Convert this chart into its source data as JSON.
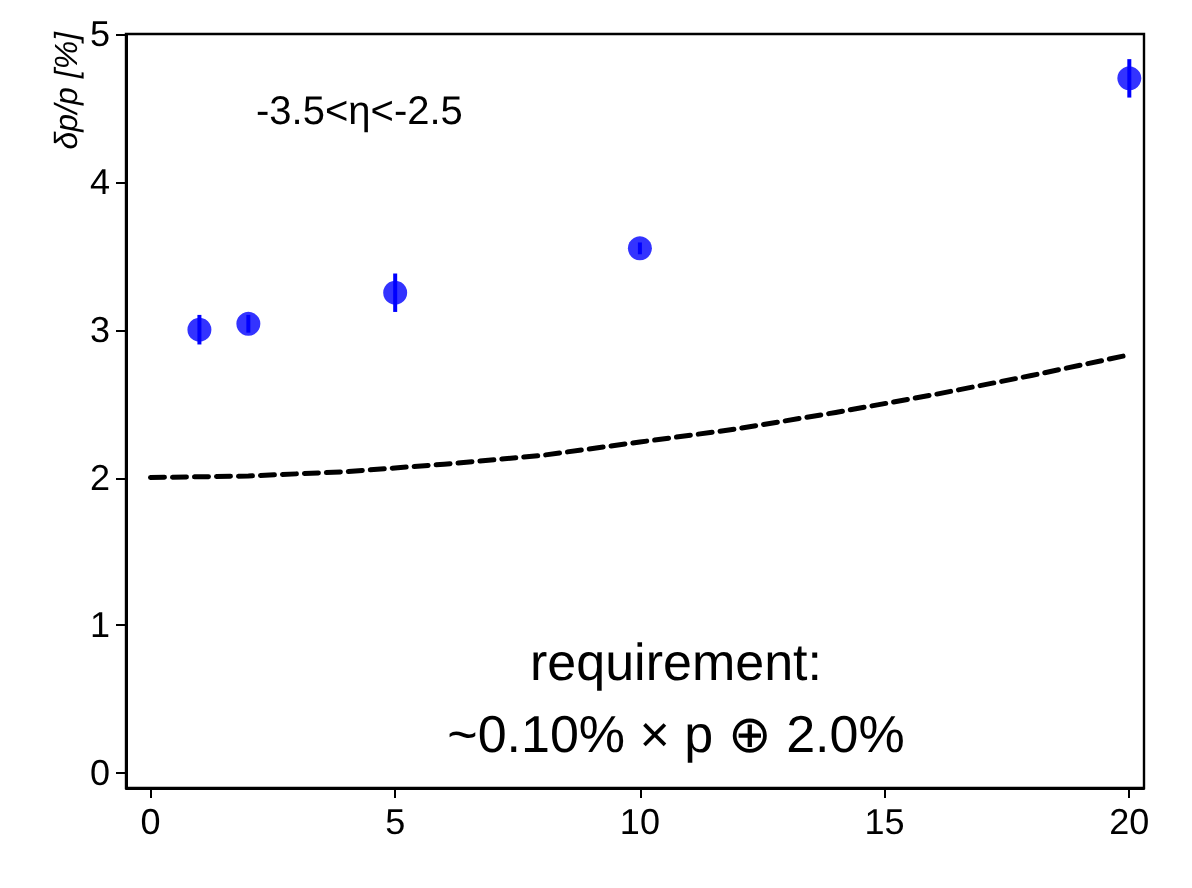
{
  "chart_data": {
    "type": "scatter",
    "ylabel": "δp/p [%]",
    "xlim": [
      -0.5,
      20.3
    ],
    "ylim": [
      -0.1,
      5
    ],
    "xticks": [
      0,
      5,
      10,
      15,
      20
    ],
    "yticks": [
      0,
      1,
      2,
      3,
      4,
      5
    ],
    "grid": false,
    "marker": "circle",
    "annotations": [
      "-3.5<η<-2.5",
      "requirement:\n~0.10% × p ⊕ 2.0%"
    ],
    "series": [
      {
        "color": "#0000ff",
        "x": [
          1,
          2,
          5,
          10,
          20
        ],
        "values": [
          3.0,
          3.04,
          3.25,
          3.55,
          4.7
        ],
        "errors": [
          0.1,
          0.06,
          0.13,
          0.04,
          0.13
        ]
      },
      {
        "type": "line",
        "color": "#000000",
        "line_style": "dashed",
        "marker": "none",
        "x": [
          0,
          2,
          4,
          6,
          8,
          10,
          12,
          14,
          16,
          18,
          20
        ],
        "values": [
          2.0,
          2.01,
          2.04,
          2.09,
          2.15,
          2.24,
          2.33,
          2.44,
          2.56,
          2.69,
          2.83
        ]
      }
    ]
  }
}
